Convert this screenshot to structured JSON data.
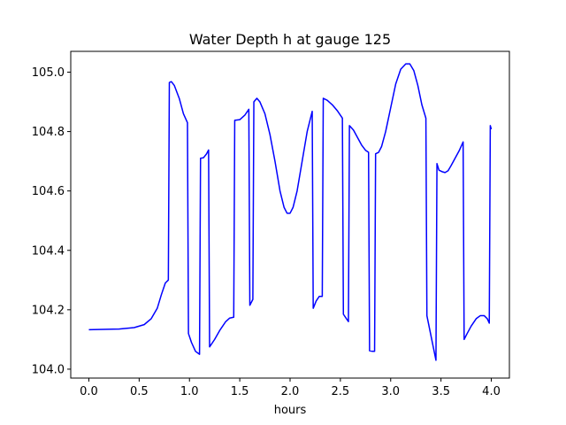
{
  "chart_data": {
    "type": "line",
    "title": "Water Depth h at gauge 125",
    "xlabel": "hours",
    "ylabel": "",
    "xlim": [
      -0.18,
      4.18
    ],
    "ylim": [
      103.97,
      105.07
    ],
    "xticks": [
      0.0,
      0.5,
      1.0,
      1.5,
      2.0,
      2.5,
      3.0,
      3.5,
      4.0
    ],
    "xtick_labels": [
      "0.0",
      "0.5",
      "1.0",
      "1.5",
      "2.0",
      "2.5",
      "3.0",
      "3.5",
      "4.0"
    ],
    "yticks": [
      104.0,
      104.2,
      104.4,
      104.6,
      104.8,
      105.0
    ],
    "ytick_labels": [
      "104.0",
      "104.2",
      "104.4",
      "104.6",
      "104.8",
      "105.0"
    ],
    "grid": false,
    "legend": "none",
    "series": [
      {
        "color": "#0000ff",
        "points": [
          [
            0.0,
            104.133
          ],
          [
            0.3,
            104.135
          ],
          [
            0.45,
            104.14
          ],
          [
            0.55,
            104.15
          ],
          [
            0.62,
            104.17
          ],
          [
            0.68,
            104.205
          ],
          [
            0.72,
            104.25
          ],
          [
            0.76,
            104.29
          ],
          [
            0.79,
            104.3
          ],
          [
            0.8,
            104.965
          ],
          [
            0.82,
            104.968
          ],
          [
            0.85,
            104.955
          ],
          [
            0.9,
            104.91
          ],
          [
            0.94,
            104.86
          ],
          [
            0.98,
            104.83
          ],
          [
            0.99,
            104.12
          ],
          [
            1.02,
            104.09
          ],
          [
            1.06,
            104.06
          ],
          [
            1.1,
            104.05
          ],
          [
            1.11,
            104.71
          ],
          [
            1.14,
            104.712
          ],
          [
            1.17,
            104.725
          ],
          [
            1.19,
            104.738
          ],
          [
            1.2,
            104.075
          ],
          [
            1.25,
            104.1
          ],
          [
            1.3,
            104.13
          ],
          [
            1.36,
            104.16
          ],
          [
            1.4,
            104.172
          ],
          [
            1.44,
            104.175
          ],
          [
            1.45,
            104.838
          ],
          [
            1.5,
            104.84
          ],
          [
            1.55,
            104.855
          ],
          [
            1.59,
            104.875
          ],
          [
            1.6,
            104.215
          ],
          [
            1.63,
            104.235
          ],
          [
            1.64,
            104.9
          ],
          [
            1.67,
            104.912
          ],
          [
            1.7,
            104.9
          ],
          [
            1.75,
            104.86
          ],
          [
            1.8,
            104.79
          ],
          [
            1.85,
            104.7
          ],
          [
            1.9,
            104.6
          ],
          [
            1.94,
            104.545
          ],
          [
            1.97,
            104.525
          ],
          [
            2.0,
            104.525
          ],
          [
            2.03,
            104.545
          ],
          [
            2.07,
            104.6
          ],
          [
            2.12,
            104.7
          ],
          [
            2.17,
            104.8
          ],
          [
            2.22,
            104.868
          ],
          [
            2.23,
            104.205
          ],
          [
            2.26,
            104.23
          ],
          [
            2.29,
            104.245
          ],
          [
            2.32,
            104.245
          ],
          [
            2.33,
            104.912
          ],
          [
            2.37,
            104.905
          ],
          [
            2.42,
            104.89
          ],
          [
            2.47,
            104.87
          ],
          [
            2.52,
            104.845
          ],
          [
            2.53,
            104.185
          ],
          [
            2.56,
            104.17
          ],
          [
            2.58,
            104.16
          ],
          [
            2.59,
            104.82
          ],
          [
            2.63,
            104.805
          ],
          [
            2.67,
            104.78
          ],
          [
            2.71,
            104.755
          ],
          [
            2.75,
            104.737
          ],
          [
            2.78,
            104.73
          ],
          [
            2.79,
            104.062
          ],
          [
            2.82,
            104.06
          ],
          [
            2.84,
            104.06
          ],
          [
            2.85,
            104.725
          ],
          [
            2.88,
            104.73
          ],
          [
            2.91,
            104.75
          ],
          [
            2.95,
            104.8
          ],
          [
            3.0,
            104.88
          ],
          [
            3.05,
            104.96
          ],
          [
            3.1,
            105.01
          ],
          [
            3.15,
            105.028
          ],
          [
            3.19,
            105.028
          ],
          [
            3.23,
            105.005
          ],
          [
            3.27,
            104.955
          ],
          [
            3.31,
            104.89
          ],
          [
            3.35,
            104.845
          ],
          [
            3.36,
            104.18
          ],
          [
            3.39,
            104.13
          ],
          [
            3.42,
            104.08
          ],
          [
            3.45,
            104.03
          ],
          [
            3.46,
            104.692
          ],
          [
            3.48,
            104.67
          ],
          [
            3.51,
            104.665
          ],
          [
            3.54,
            104.662
          ],
          [
            3.57,
            104.668
          ],
          [
            3.6,
            104.685
          ],
          [
            3.64,
            104.71
          ],
          [
            3.68,
            104.735
          ],
          [
            3.72,
            104.765
          ],
          [
            3.73,
            104.1
          ],
          [
            3.76,
            104.12
          ],
          [
            3.8,
            104.145
          ],
          [
            3.85,
            104.17
          ],
          [
            3.89,
            104.18
          ],
          [
            3.93,
            104.18
          ],
          [
            3.96,
            104.17
          ],
          [
            3.98,
            104.155
          ],
          [
            3.99,
            104.82
          ],
          [
            4.0,
            104.808
          ]
        ]
      }
    ]
  }
}
